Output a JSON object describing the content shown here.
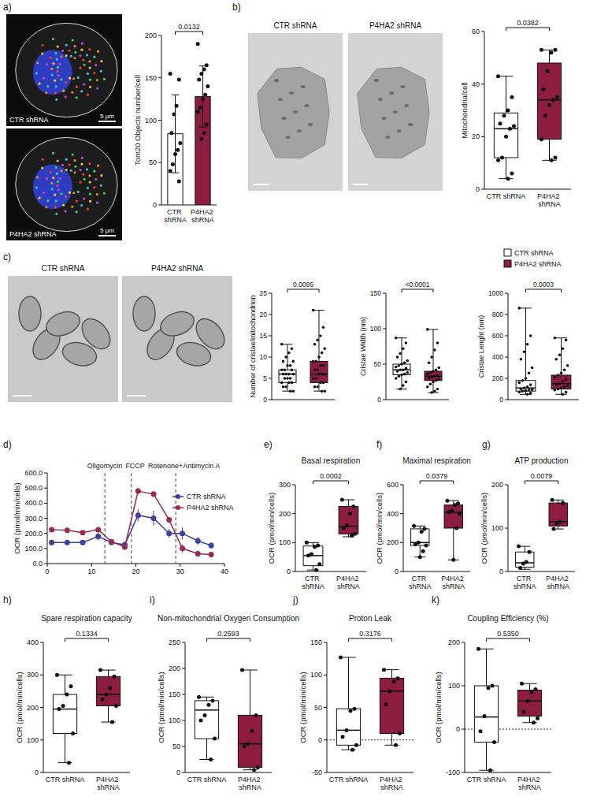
{
  "images": [
    {
      "panel": "a)",
      "label": "CTR shRNA",
      "scale_bar": "5 µm"
    },
    {
      "label": "P4HA2 shRNA",
      "scale_bar": "5 µm"
    },
    {
      "panel": "b)",
      "label": "CTR shRNA"
    },
    {
      "label": "P4HA2 shRNA"
    },
    {
      "panel": "c)",
      "label": "CTR shRNA"
    },
    {
      "label": "P4HA2 shRNA"
    }
  ],
  "chart_data": [
    {
      "type": "bar",
      "y_label": "Tom20 Objects number/cell",
      "ylim": [
        0,
        200
      ],
      "yticks": [
        0,
        50,
        100,
        150,
        200
      ],
      "annotations": [
        "0.0132"
      ],
      "groups": [
        {
          "name": "CTR shRNA",
          "color": "#ffffff",
          "value": 84,
          "error": 46,
          "points": [
            155,
            148,
            117,
            107,
            85,
            73,
            65,
            60,
            48,
            40,
            28
          ]
        },
        {
          "name": "P4HA2 shRNA",
          "color": "#8c1d40",
          "value": 128,
          "error": 36,
          "points": [
            190,
            165,
            160,
            155,
            148,
            140,
            130,
            125,
            115,
            110,
            95,
            85,
            78
          ]
        }
      ]
    },
    {
      "type": "box",
      "y_label": "Mitochondria/cell",
      "ylim": [
        0,
        60
      ],
      "yticks": [
        0,
        20,
        40,
        60
      ],
      "annotations": [
        "0.0382"
      ],
      "groups": [
        {
          "name": "CTR shRNA",
          "color": "#ffffff",
          "min": 4,
          "q1": 12,
          "median": 23,
          "q3": 29,
          "max": 43,
          "points": [
            43,
            35,
            30,
            28,
            25,
            24,
            23,
            20,
            12,
            11,
            6,
            4
          ]
        },
        {
          "name": "P4HA2 shRNA",
          "color": "#8c1d40",
          "min": 11,
          "q1": 19,
          "median": 34,
          "q3": 48,
          "max": 53,
          "points": [
            53,
            53,
            52,
            45,
            38,
            35,
            34,
            32,
            28,
            19,
            12,
            11
          ]
        }
      ]
    },
    {
      "type": "box",
      "y_label": "Number of cristae/mitochondrion",
      "ylim": [
        0,
        25
      ],
      "yticks": [
        0,
        5,
        10,
        15,
        20,
        25
      ],
      "annotations": [
        "0.0095"
      ],
      "tick_labels": "y",
      "groups": [
        {
          "color": "#ffffff",
          "min": 2,
          "q1": 4,
          "median": 6,
          "q3": 7,
          "max": 13,
          "points": [
            13,
            12,
            11,
            10,
            9,
            9,
            8,
            8,
            7,
            7,
            7,
            6,
            6,
            6,
            6,
            5,
            5,
            5,
            4,
            4,
            4,
            3,
            3,
            2,
            2
          ]
        },
        {
          "color": "#8c1d40",
          "min": 2,
          "q1": 4,
          "median": 6,
          "q3": 9,
          "max": 21,
          "points": [
            21,
            17,
            15,
            14,
            13,
            12,
            11,
            10,
            9,
            9,
            8,
            8,
            7,
            7,
            6,
            6,
            6,
            5,
            5,
            4,
            4,
            3,
            3,
            2,
            2
          ]
        }
      ]
    },
    {
      "type": "box",
      "y_label": "Cristae Width (nm)",
      "ylim": [
        0,
        150
      ],
      "yticks": [
        0,
        50,
        100,
        150
      ],
      "annotations": [
        "<0.0001"
      ],
      "tick_labels": "y",
      "groups": [
        {
          "color": "#ffffff",
          "min": 15,
          "q1": 35,
          "median": 42,
          "q3": 50,
          "max": 87,
          "points": [
            87,
            80,
            72,
            65,
            60,
            55,
            52,
            50,
            48,
            46,
            44,
            42,
            42,
            40,
            38,
            36,
            35,
            33,
            30,
            25,
            20,
            15
          ]
        },
        {
          "color": "#8c1d40",
          "min": 10,
          "q1": 27,
          "median": 33,
          "q3": 40,
          "max": 99,
          "points": [
            99,
            80,
            70,
            60,
            52,
            45,
            42,
            40,
            38,
            36,
            34,
            33,
            32,
            30,
            29,
            27,
            25,
            22,
            18,
            15,
            12,
            10
          ]
        }
      ]
    },
    {
      "type": "box",
      "y_label": "Cristae Lenght (nm)",
      "ylim": [
        0,
        1000
      ],
      "yticks": [
        0,
        200,
        400,
        600,
        800,
        1000
      ],
      "annotations": [
        "0.0003"
      ],
      "tick_labels": "y",
      "legend": "top-right",
      "groups": [
        {
          "name": "CTR shRNA",
          "color": "#ffffff",
          "min": 50,
          "q1": 80,
          "median": 110,
          "q3": 180,
          "max": 860,
          "points": [
            860,
            600,
            520,
            450,
            380,
            300,
            250,
            200,
            180,
            160,
            140,
            120,
            110,
            100,
            95,
            90,
            85,
            80,
            70,
            60,
            50
          ]
        },
        {
          "name": "P4HA2 shRNA",
          "color": "#8c1d40",
          "min": 50,
          "q1": 100,
          "median": 150,
          "q3": 230,
          "max": 580,
          "points": [
            580,
            560,
            480,
            420,
            380,
            320,
            280,
            250,
            230,
            210,
            190,
            170,
            150,
            140,
            130,
            120,
            110,
            100,
            90,
            70,
            50
          ]
        }
      ]
    },
    {
      "type": "line",
      "panel": "d)",
      "y_label": "OCR (pmol/min/cells)",
      "legend": "right",
      "x": [
        1,
        4.5,
        8,
        11.5,
        14.5,
        17.5,
        20.5,
        24,
        27.5,
        30.5,
        34,
        37
      ],
      "xlim": [
        0,
        40
      ],
      "xticks": [
        0,
        10,
        20,
        30,
        40
      ],
      "ylim": [
        0,
        600
      ],
      "yticks": [
        {
          "value": 0,
          "label": "0.0"
        },
        {
          "value": 100,
          "label": "100.0"
        },
        {
          "value": 200,
          "label": "200.0"
        },
        {
          "value": 300,
          "label": "300.0"
        },
        {
          "value": 400,
          "label": "400.0"
        },
        {
          "value": 500,
          "label": "500.0"
        },
        {
          "value": 600,
          "label": "600.0"
        }
      ],
      "annotations": [
        {
          "x": 13,
          "text": "Oligomycin"
        },
        {
          "x": 19,
          "text": "FCCP"
        },
        {
          "x": 29,
          "text": "Rotenone+Antimycin A"
        }
      ],
      "series": [
        {
          "name": "CTR shRNA",
          "color": "#3b3f9e",
          "marker": "circle",
          "values": [
            140,
            140,
            140,
            180,
            140,
            125,
            320,
            300,
            200,
            200,
            150,
            120
          ],
          "errors": [
            8,
            10,
            8,
            25,
            10,
            8,
            40,
            50,
            30,
            40,
            25,
            20
          ]
        },
        {
          "name": "P4HA2 shRNA",
          "color": "#9b2a50",
          "marker": "circle",
          "values": [
            225,
            220,
            205,
            225,
            145,
            110,
            480,
            460,
            290,
            100,
            65,
            60
          ],
          "errors": [
            10,
            8,
            8,
            10,
            8,
            8,
            20,
            15,
            20,
            25,
            10,
            10
          ]
        }
      ]
    },
    {
      "type": "box",
      "panel": "e)",
      "title": "Basal respiration",
      "y_label": "OCR (pmol/min/cells)",
      "ylim": [
        0,
        300
      ],
      "yticks": [
        0,
        100,
        200,
        300
      ],
      "annotations": [
        "0.0002"
      ],
      "groups": [
        {
          "name": "CTR shRNA",
          "color": "#ffffff",
          "min": 5,
          "q1": 20,
          "median": 55,
          "q3": 88,
          "max": 100,
          "points": [
            100,
            90,
            85,
            60,
            55,
            25,
            5
          ]
        },
        {
          "name": "P4HA2 shRNA",
          "color": "#8c1d40",
          "min": 120,
          "q1": 130,
          "median": 155,
          "q3": 225,
          "max": 248,
          "points": [
            248,
            225,
            200,
            160,
            150,
            130,
            125
          ]
        }
      ]
    },
    {
      "type": "box",
      "panel": "f)",
      "title": "Maximal respiration",
      "y_label": "OCR (pmol/min/cells)",
      "ylim": [
        0,
        600
      ],
      "yticks": [
        0,
        200,
        400,
        600
      ],
      "annotations": [
        "0.0379"
      ],
      "groups": [
        {
          "name": "CTR shRNA",
          "color": "#ffffff",
          "min": 100,
          "q1": 180,
          "median": 200,
          "q3": 295,
          "max": 315,
          "points": [
            315,
            295,
            275,
            200,
            190,
            180,
            140,
            100
          ]
        },
        {
          "name": "P4HA2 shRNA",
          "color": "#8c1d40",
          "min": 80,
          "q1": 300,
          "median": 410,
          "q3": 460,
          "max": 490,
          "points": [
            490,
            470,
            460,
            420,
            410,
            400,
            300,
            80
          ]
        }
      ]
    },
    {
      "type": "box",
      "panel": "g)",
      "title": "ATP production",
      "y_label": "OCR (pmol/min/cells)",
      "ylim": [
        0,
        200
      ],
      "yticks": [
        0,
        100,
        200
      ],
      "annotations": [
        "0.0079"
      ],
      "groups": [
        {
          "name": "CTR shRNA",
          "color": "#ffffff",
          "min": 5,
          "q1": 10,
          "median": 20,
          "q3": 45,
          "max": 58,
          "points": [
            58,
            45,
            22,
            18,
            8
          ]
        },
        {
          "name": "P4HA2 shRNA",
          "color": "#8c1d40",
          "min": 98,
          "q1": 105,
          "median": 115,
          "q3": 158,
          "max": 165,
          "points": [
            165,
            158,
            115,
            110,
            98
          ]
        }
      ]
    },
    {
      "type": "box",
      "panel": "h)",
      "title": "Spare respiration capacity",
      "y_label": "OCR (pmol/min/cells)",
      "ylim": [
        0,
        400
      ],
      "yticks": [
        0,
        100,
        200,
        300,
        400
      ],
      "annotations": [
        "0.1334"
      ],
      "groups": [
        {
          "name": "CTR shRNA",
          "color": "#ffffff",
          "min": 30,
          "q1": 120,
          "median": 195,
          "q3": 240,
          "max": 300,
          "points": [
            300,
            265,
            240,
            205,
            195,
            120,
            30
          ]
        },
        {
          "name": "P4HA2 shRNA",
          "color": "#8c1d40",
          "min": 155,
          "q1": 205,
          "median": 240,
          "q3": 295,
          "max": 315,
          "points": [
            315,
            295,
            260,
            240,
            225,
            205,
            155
          ]
        }
      ]
    },
    {
      "type": "box",
      "panel": "i)",
      "title": "Non-mitochondrial Oxygen Consumption",
      "y_label": "OCR (pmol/min/cells)",
      "ylim": [
        0,
        250
      ],
      "yticks": [
        0,
        50,
        100,
        150,
        200,
        250
      ],
      "annotations": [
        "0.2593"
      ],
      "groups": [
        {
          "name": "CTR shRNA",
          "color": "#ffffff",
          "min": 25,
          "q1": 65,
          "median": 120,
          "q3": 138,
          "max": 145,
          "points": [
            145,
            138,
            130,
            110,
            100,
            65,
            25
          ]
        },
        {
          "name": "P4HA2 shRNA",
          "color": "#8c1d40",
          "min": 5,
          "q1": 10,
          "median": 55,
          "q3": 110,
          "max": 197,
          "points": [
            197,
            110,
            80,
            55,
            50,
            10,
            5
          ]
        }
      ]
    },
    {
      "type": "box",
      "panel": "j)",
      "title": "Proton Leak",
      "y_label": "OCR (pmol/min/cells)",
      "ylim": [
        -50,
        150
      ],
      "yticks": [
        -50,
        0,
        50,
        100,
        150
      ],
      "annotations": [
        "0.3176"
      ],
      "groups": [
        {
          "name": "CTR shRNA",
          "color": "#ffffff",
          "min": -15,
          "q1": -8,
          "median": 15,
          "q3": 48,
          "max": 127,
          "points": [
            127,
            48,
            45,
            15,
            5,
            -8,
            -15
          ]
        },
        {
          "name": "P4HA2 shRNA",
          "color": "#8c1d40",
          "min": -8,
          "q1": 10,
          "median": 75,
          "q3": 95,
          "max": 108,
          "points": [
            108,
            95,
            90,
            75,
            55,
            10,
            -8
          ]
        }
      ]
    },
    {
      "type": "box",
      "panel": "k)",
      "title": "Coupling Efficiency (%)",
      "y_label": "OCR (pmol/min/cells)",
      "ylim": [
        -100,
        200
      ],
      "yticks": [
        -100,
        0,
        100,
        200
      ],
      "annotations": [
        "0.5350"
      ],
      "groups": [
        {
          "name": "CTR shRNA",
          "color": "#ffffff",
          "min": -95,
          "q1": -30,
          "median": 28,
          "q3": 100,
          "max": 185,
          "points": [
            185,
            100,
            95,
            30,
            -5,
            -30,
            -95
          ]
        },
        {
          "name": "P4HA2 shRNA",
          "color": "#8c1d40",
          "min": 15,
          "q1": 30,
          "median": 65,
          "q3": 90,
          "max": 105,
          "points": [
            105,
            92,
            85,
            65,
            40,
            25,
            15
          ]
        }
      ]
    }
  ]
}
